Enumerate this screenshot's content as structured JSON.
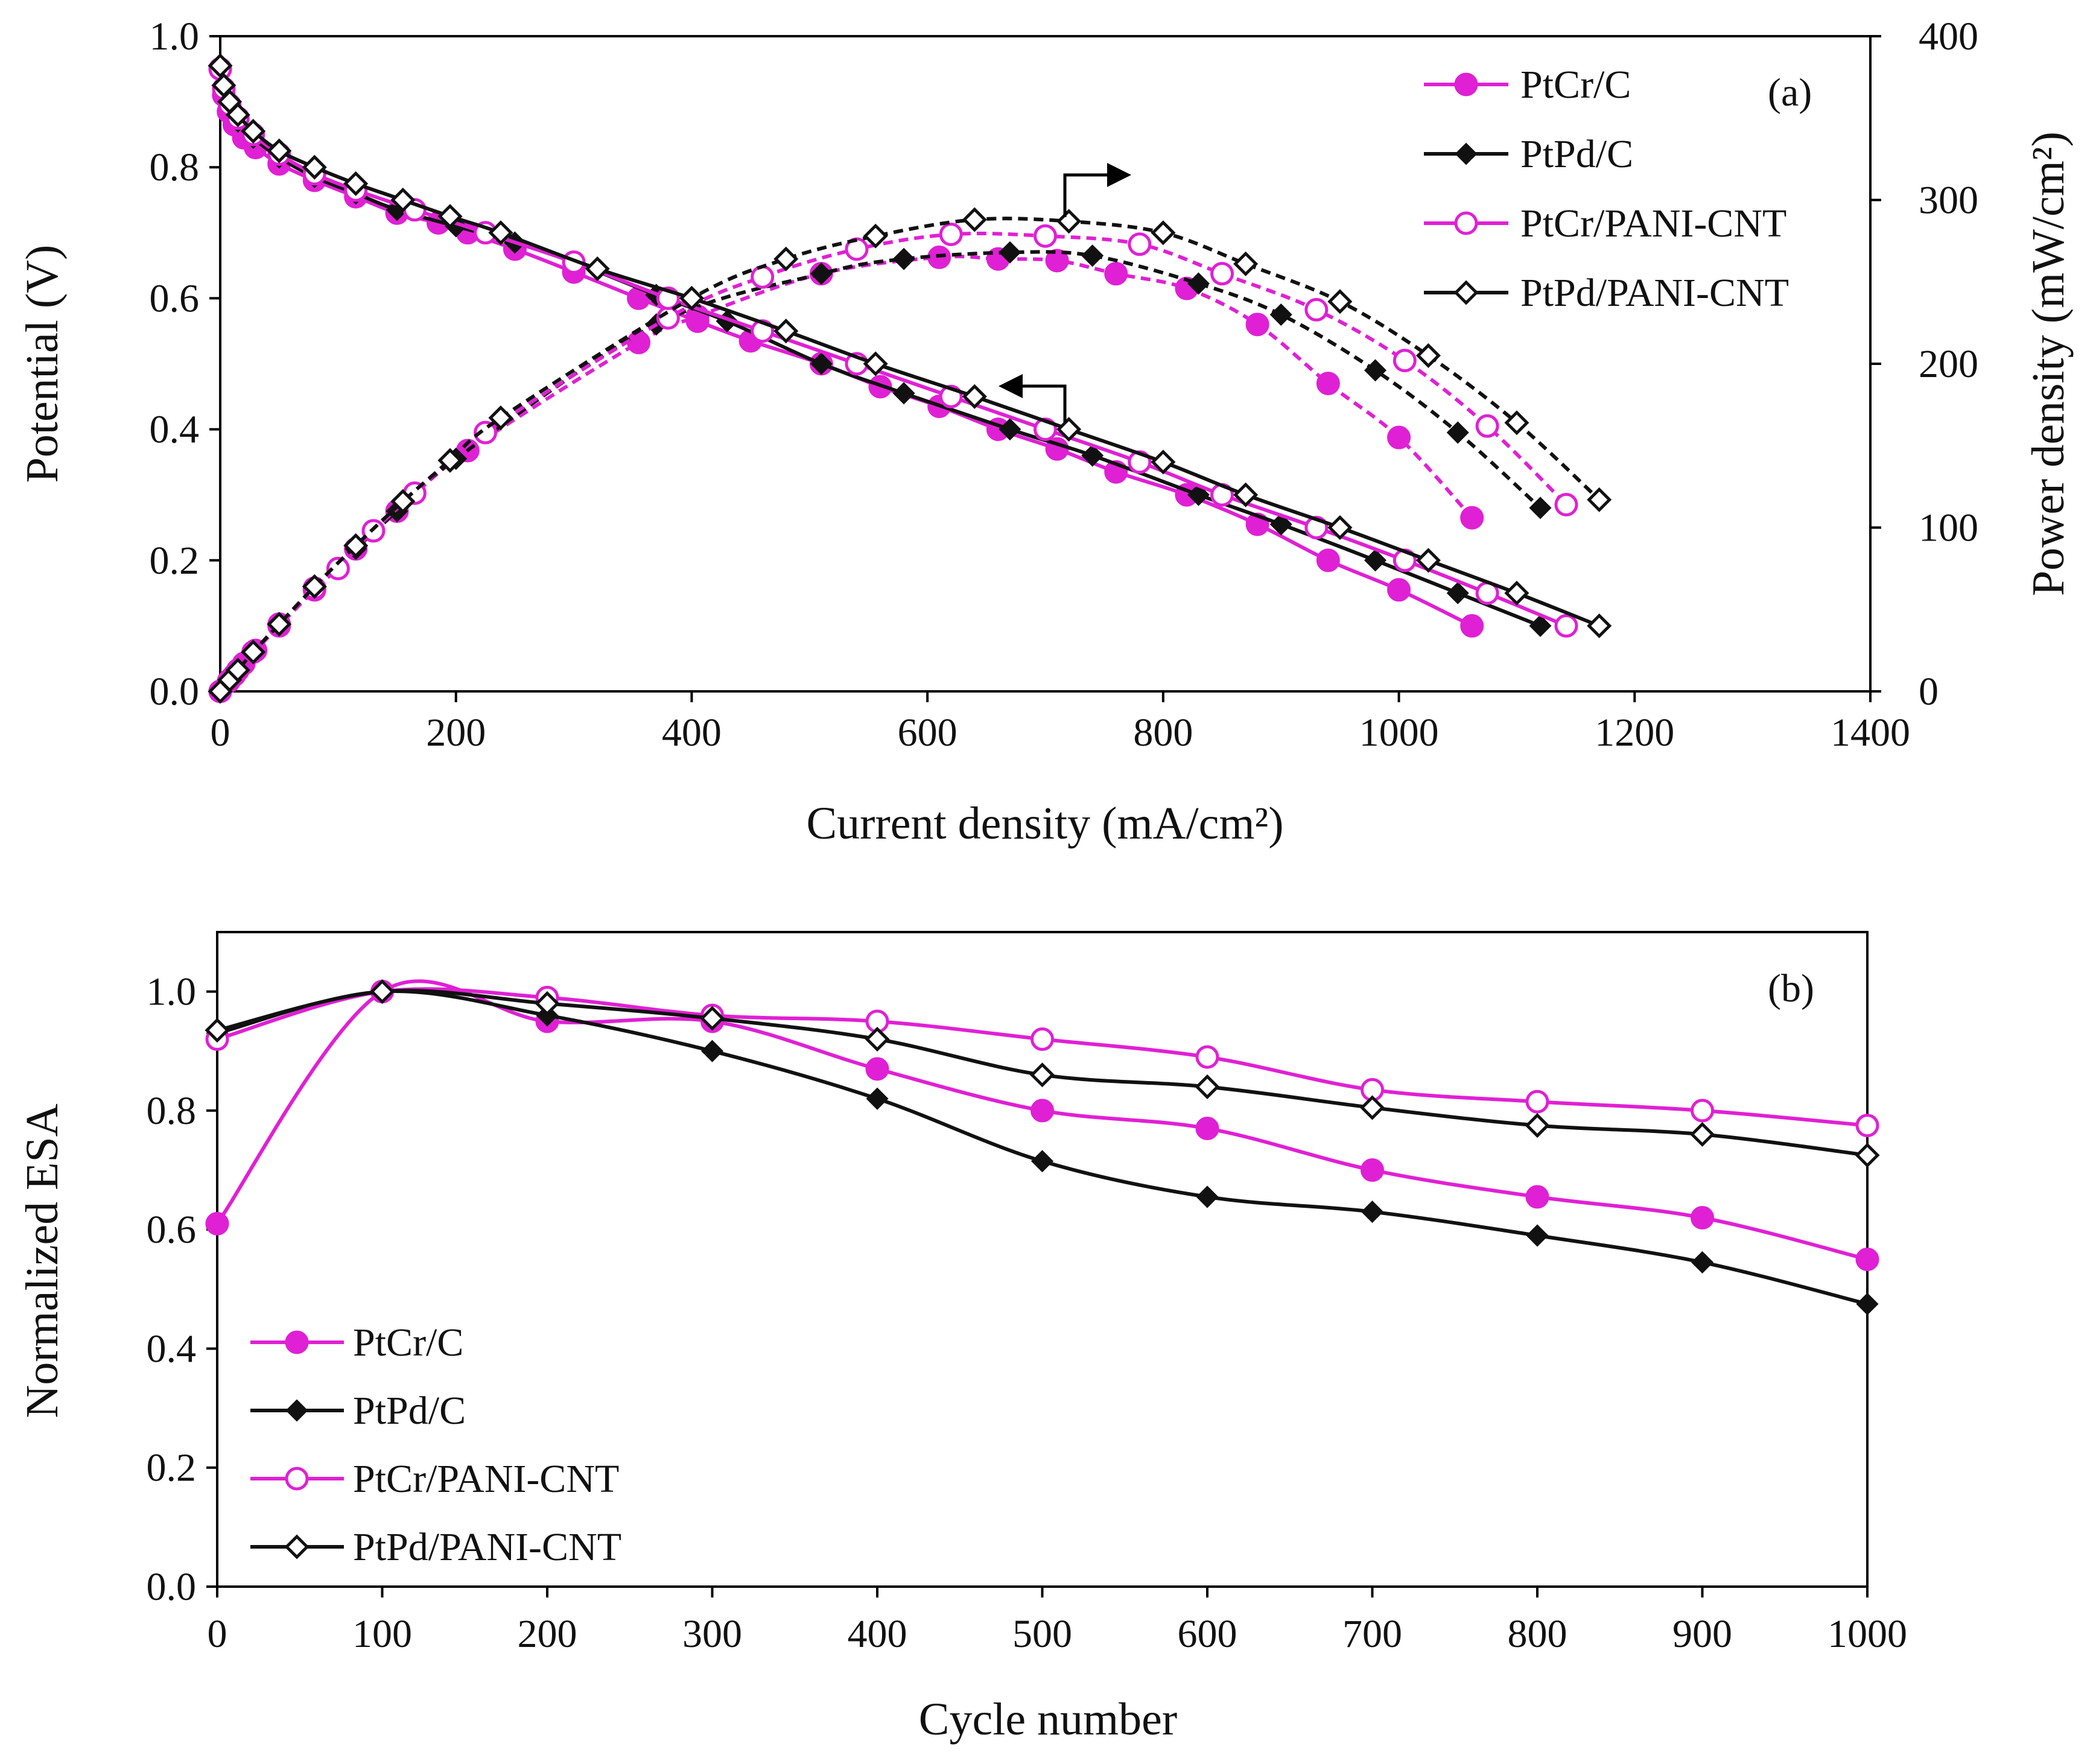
{
  "colors": {
    "magenta": "#e020d4",
    "black": "#111111",
    "axis": "#000000",
    "background": "#ffffff"
  },
  "chart_data": [
    {
      "panel": "(a)",
      "type": "line",
      "xlabel": "Current density (mA/cm²)",
      "ylabel": "Potential (V)",
      "y2label": "Power density (mW/cm²)",
      "xlim": [
        0,
        1400
      ],
      "ylim": [
        0,
        1.0
      ],
      "y2lim": [
        0,
        400
      ],
      "xticks": [
        "0",
        "200",
        "400",
        "600",
        "800",
        "1000",
        "1200",
        "1400"
      ],
      "yticks": [
        "0.0",
        "0.2",
        "0.4",
        "0.6",
        "0.8",
        "1.0"
      ],
      "y2ticks": [
        "0",
        "100",
        "200",
        "300",
        "400"
      ],
      "legend_position": "top-right",
      "series": [
        {
          "name": "PtCr/C",
          "color": "magenta",
          "marker": "filled-circle",
          "polarization": {
            "x": [
              0,
              3,
              7,
              12,
              20,
              30,
              50,
              80,
              115,
              150,
              185,
              210,
              250,
              300,
              355,
              405,
              450,
              510,
              560,
              610,
              660,
              710,
              760,
              820,
              880,
              940,
              1000,
              1062
            ],
            "y": [
              0.95,
              0.91,
              0.885,
              0.865,
              0.845,
              0.83,
              0.805,
              0.78,
              0.755,
              0.73,
              0.715,
              0.7,
              0.675,
              0.64,
              0.6,
              0.565,
              0.535,
              0.5,
              0.465,
              0.435,
              0.4,
              0.37,
              0.335,
              0.3,
              0.255,
              0.2,
              0.155,
              0.1
            ]
          },
          "power": {
            "x": [
              0,
              7,
              12,
              20,
              30,
              50,
              80,
              115,
              150,
              210,
              355,
              405,
              510,
              610,
              660,
              710,
              760,
              820,
              880,
              940,
              1000,
              1062
            ],
            "y": [
              0,
              6,
              10,
              17,
              25,
              40,
              62,
              87,
              110,
              147,
              213,
              229,
              255,
              265,
              264,
              263,
              255,
              246,
              224,
              188,
              155,
              106
            ]
          }
        },
        {
          "name": "PtPd/C",
          "color": "black",
          "marker": "filled-diamond",
          "polarization": {
            "x": [
              0,
              3,
              8,
              15,
              28,
              50,
              80,
              115,
              150,
              200,
              250,
              300,
              370,
              430,
              510,
              580,
              670,
              740,
              830,
              900,
              980,
              1050,
              1120
            ],
            "y": [
              0.95,
              0.915,
              0.89,
              0.87,
              0.845,
              0.815,
              0.785,
              0.76,
              0.735,
              0.71,
              0.685,
              0.655,
              0.605,
              0.565,
              0.5,
              0.455,
              0.4,
              0.36,
              0.3,
              0.255,
              0.2,
              0.15,
              0.1
            ]
          },
          "power": {
            "x": [
              0,
              8,
              15,
              28,
              50,
              80,
              115,
              150,
              200,
              370,
              510,
              580,
              670,
              740,
              830,
              900,
              980,
              1050,
              1120
            ],
            "y": [
              0,
              7,
              13,
              24,
              41,
              63,
              87,
              110,
              142,
              224,
              255,
              264,
              268,
              266,
              249,
              230,
              196,
              158,
              112
            ]
          }
        },
        {
          "name": "PtCr/PANI-CNT",
          "color": "magenta",
          "marker": "open-circle",
          "polarization": {
            "x": [
              0,
              3,
              8,
              15,
              28,
              50,
              80,
              115,
              165,
              225,
              300,
              380,
              460,
              540,
              620,
              700,
              780,
              850,
              930,
              1005,
              1075,
              1142
            ],
            "y": [
              0.95,
              0.92,
              0.895,
              0.875,
              0.85,
              0.82,
              0.79,
              0.765,
              0.735,
              0.7,
              0.655,
              0.6,
              0.55,
              0.5,
              0.45,
              0.4,
              0.35,
              0.3,
              0.25,
              0.2,
              0.15,
              0.1
            ]
          },
          "power": {
            "x": [
              0,
              8,
              15,
              28,
              50,
              80,
              100,
              130,
              165,
              225,
              380,
              460,
              540,
              620,
              700,
              780,
              850,
              930,
              1005,
              1075,
              1142
            ],
            "y": [
              0,
              7,
              13,
              24,
              41,
              63,
              75,
              98,
              121,
              158,
              228,
              253,
              270,
              279,
              278,
              273,
              255,
              233,
              202,
              162,
              114
            ]
          }
        },
        {
          "name": "PtPd/PANI-CNT",
          "color": "black",
          "marker": "open-diamond",
          "polarization": {
            "x": [
              0,
              3,
              8,
              15,
              28,
              50,
              80,
              115,
              155,
              195,
              238,
              320,
              400,
              480,
              556,
              640,
              720,
              800,
              870,
              950,
              1025,
              1100,
              1170
            ],
            "y": [
              0.955,
              0.925,
              0.9,
              0.88,
              0.855,
              0.825,
              0.8,
              0.775,
              0.75,
              0.725,
              0.7,
              0.645,
              0.6,
              0.55,
              0.5,
              0.45,
              0.4,
              0.35,
              0.3,
              0.25,
              0.2,
              0.15,
              0.1
            ]
          },
          "power": {
            "x": [
              0,
              8,
              15,
              28,
              50,
              80,
              115,
              155,
              195,
              238,
              400,
              480,
              556,
              640,
              720,
              800,
              870,
              950,
              1025,
              1100,
              1170
            ],
            "y": [
              0,
              7,
              13,
              24,
              41,
              64,
              89,
              116,
              141,
              167,
              240,
              264,
              278,
              288,
              287,
              280,
              261,
              238,
              205,
              164,
              117
            ]
          }
        }
      ],
      "annotations": [
        "arrow pointing right to power density axis",
        "arrow pointing left to potential axis"
      ]
    },
    {
      "panel": "(b)",
      "type": "line",
      "xlabel": "Cycle number",
      "ylabel": "Normalized ESA",
      "xlim": [
        0,
        1000
      ],
      "ylim": [
        0,
        1.1
      ],
      "xticks": [
        "0",
        "100",
        "200",
        "300",
        "400",
        "500",
        "600",
        "700",
        "800",
        "900",
        "1000"
      ],
      "yticks": [
        "0.0",
        "0.2",
        "0.4",
        "0.6",
        "0.8",
        "1.0"
      ],
      "legend_position": "bottom-left",
      "x": [
        0,
        100,
        200,
        300,
        400,
        500,
        600,
        700,
        800,
        900,
        1000
      ],
      "series": [
        {
          "name": "PtCr/C",
          "color": "magenta",
          "marker": "filled-circle",
          "values": [
            0.61,
            1.0,
            0.95,
            0.95,
            0.87,
            0.8,
            0.77,
            0.7,
            0.655,
            0.62,
            0.55
          ]
        },
        {
          "name": "PtPd/C",
          "color": "black",
          "marker": "filled-diamond",
          "values": [
            0.93,
            1.0,
            0.96,
            0.9,
            0.82,
            0.715,
            0.655,
            0.63,
            0.59,
            0.545,
            0.475
          ]
        },
        {
          "name": "PtCr/PANI-CNT",
          "color": "magenta",
          "marker": "open-circle",
          "values": [
            0.92,
            1.0,
            0.99,
            0.96,
            0.95,
            0.92,
            0.89,
            0.835,
            0.815,
            0.8,
            0.775
          ]
        },
        {
          "name": "PtPd/PANI-CNT",
          "color": "black",
          "marker": "open-diamond",
          "values": [
            0.935,
            1.0,
            0.98,
            0.955,
            0.92,
            0.86,
            0.84,
            0.805,
            0.775,
            0.76,
            0.725
          ]
        }
      ]
    }
  ]
}
